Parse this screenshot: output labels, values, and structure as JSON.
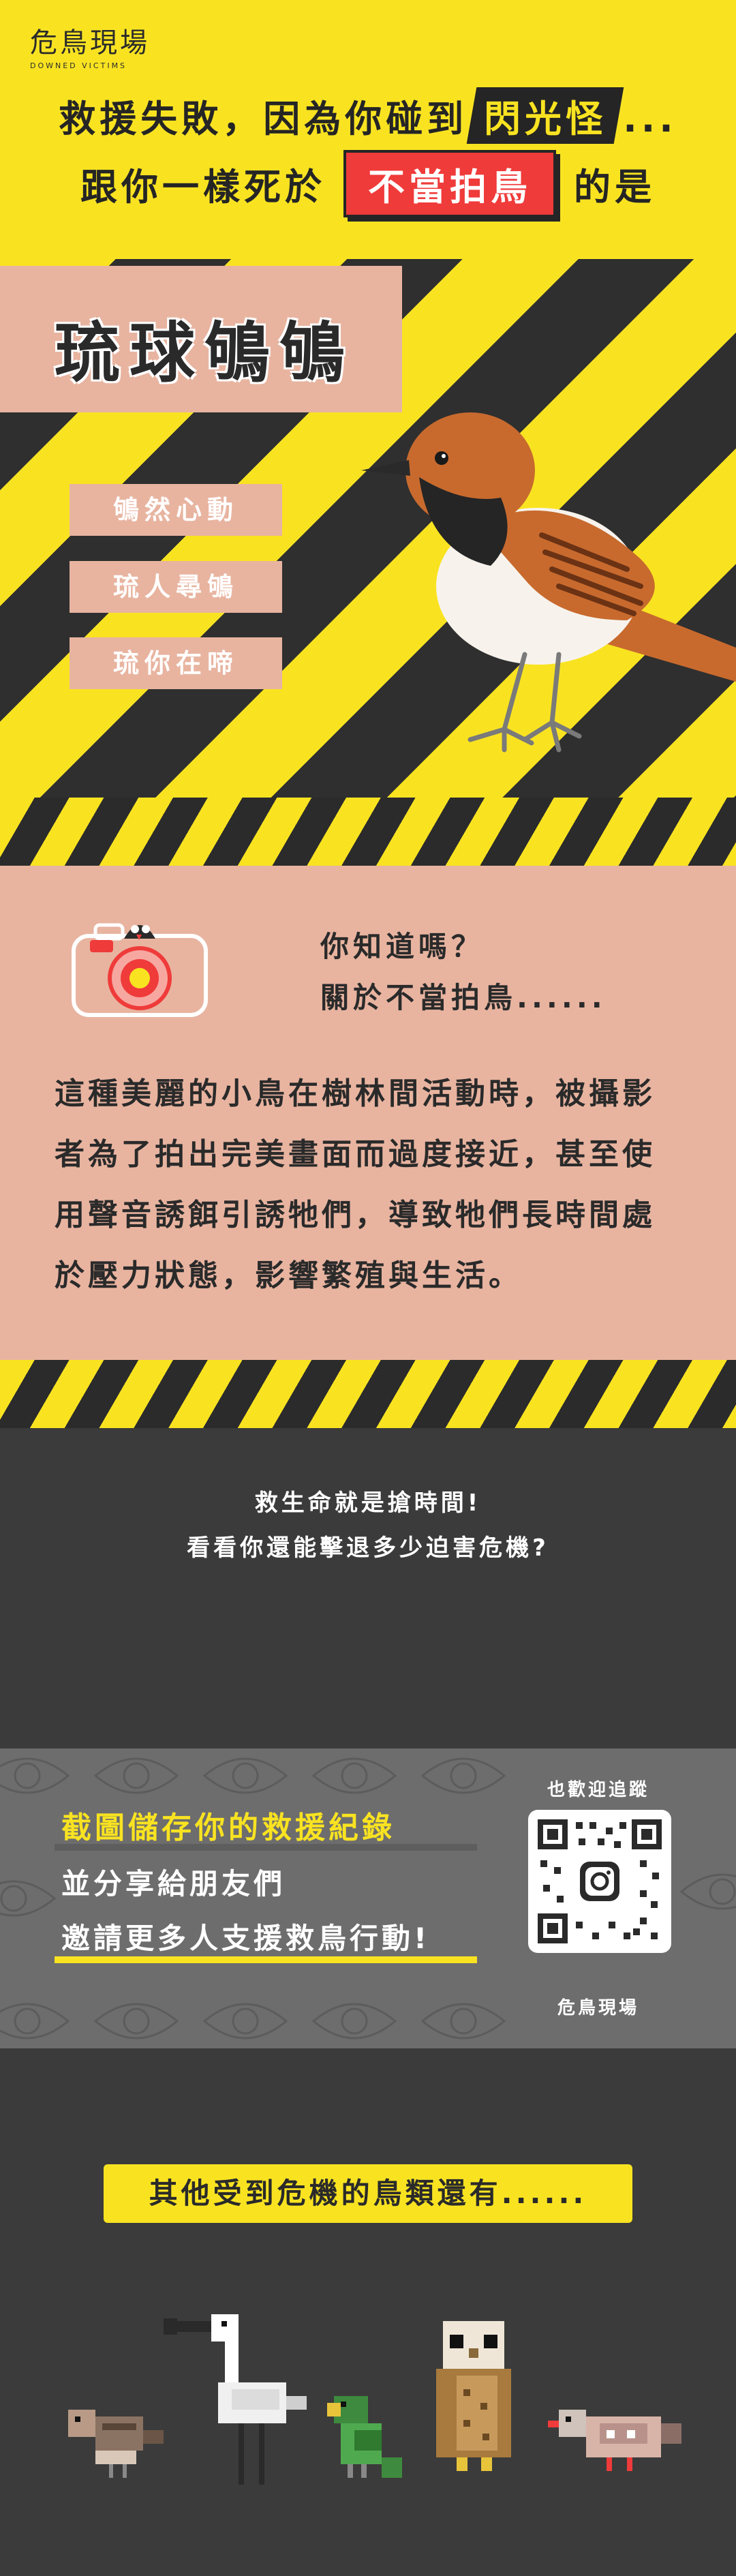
{
  "brand": {
    "logo_text": "危鳥現場",
    "logo_sub": "DOWNED VICTIMS"
  },
  "headline": {
    "line1_pre": "救援失敗，因為你碰到",
    "line1_tag": "閃光怪",
    "line1_post": "...",
    "line2_pre": "跟你一樣死於",
    "line2_tag": "不當拍鳥",
    "line2_post": "的是"
  },
  "hero": {
    "bird_name": "琉球鴝鴝",
    "puns": [
      "鴝然心動",
      "琉人尋鴝",
      "琉你在啼"
    ]
  },
  "info": {
    "question1": "你知道嗎？",
    "question2": "關於不當拍鳥......",
    "body": "這種美麗的小鳥在樹林間活動時，被攝影者為了拍出完美畫面而過度接近，甚至使用聲音誘餌引誘牠們，導致牠們長時間處於壓力狀態，影響繁殖與生活。"
  },
  "rescue": {
    "line1": "救生命就是搶時間!",
    "line2": "看看你還能擊退多少迫害危機?"
  },
  "share": {
    "line1": "截圖儲存你的救援紀錄",
    "line2": "並分享給朋友們",
    "line3": "邀請更多人支援救鳥行動!",
    "qr_top_label": "也歡迎追蹤",
    "qr_bottom_label": "危鳥現場"
  },
  "others": {
    "banner": "其他受到危機的鳥類還有......"
  },
  "colors": {
    "yellow": "#f9e321",
    "dark": "#2f2f2f",
    "pink": "#e8b4a0",
    "red": "#ef3b3a",
    "grey": "#6d6d6d"
  }
}
